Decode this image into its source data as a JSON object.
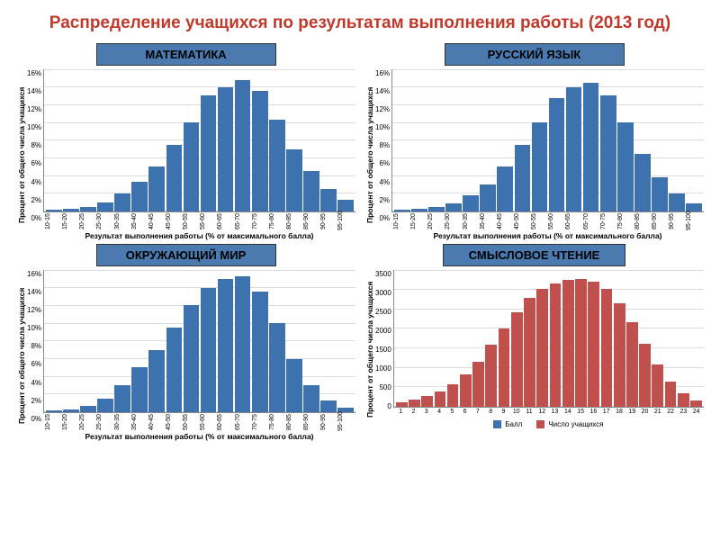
{
  "title": "Распределение учащихся по результатам выполнения работы (2013 год)",
  "title_color": "#c0392b",
  "panel_title_bg": "#4a7ab0",
  "bar_color_blue": "#3e72ae",
  "bar_color_red": "#c0504d",
  "grid_color": "#dcdcdc",
  "axis_color": "#888888",
  "ylabel_pct": "Процент от общего числа учащихся",
  "xlabel_pct": "Результат выполнения работы (% от максимального балла)",
  "categories_pct": [
    "10-15",
    "15-20",
    "20-25",
    "25-30",
    "30-35",
    "35-40",
    "40-45",
    "45-50",
    "50-55",
    "55-60",
    "60-65",
    "65-70",
    "70-75",
    "75-80",
    "80-85",
    "85-90",
    "90-95",
    "95-100"
  ],
  "yticks_pct": [
    "16%",
    "14%",
    "12%",
    "10%",
    "8%",
    "6%",
    "4%",
    "2%",
    "0%"
  ],
  "ymax_pct": 16,
  "panels": [
    {
      "key": "math",
      "title": "МАТЕМАТИКА",
      "type": "bar",
      "color_key": "bar_color_blue",
      "values": [
        0.2,
        0.3,
        0.5,
        1,
        2,
        3.3,
        5,
        7.5,
        10,
        13,
        14,
        14.8,
        13.5,
        10.3,
        7,
        4.5,
        2.5,
        1.3
      ]
    },
    {
      "key": "russian",
      "title": "РУССКИЙ ЯЗЫК",
      "type": "bar",
      "color_key": "bar_color_blue",
      "values": [
        0.2,
        0.3,
        0.5,
        0.9,
        1.8,
        3,
        5,
        7.5,
        10,
        12.7,
        14,
        14.5,
        13,
        10,
        6.5,
        3.8,
        2,
        0.9
      ]
    },
    {
      "key": "world",
      "title": "ОКРУЖАЮЩИЙ МИР",
      "type": "bar",
      "color_key": "bar_color_blue",
      "values": [
        0.2,
        0.3,
        0.7,
        1.5,
        3,
        5,
        7,
        9.5,
        12,
        14,
        15,
        15.3,
        13.5,
        10,
        6,
        3,
        1.3,
        0.5
      ]
    }
  ],
  "reading": {
    "title": "СМЫСЛОВОЕ ЧТЕНИЕ",
    "type": "bar",
    "color_key": "bar_color_red",
    "ylabel": "Процент от общего числа учащихся",
    "categories": [
      "1",
      "2",
      "3",
      "4",
      "5",
      "6",
      "7",
      "8",
      "9",
      "10",
      "11",
      "12",
      "13",
      "14",
      "15",
      "16",
      "17",
      "18",
      "19",
      "20",
      "21",
      "22",
      "23",
      "24"
    ],
    "yticks": [
      "3500",
      "3000",
      "2500",
      "2000",
      "1500",
      "1000",
      "500",
      "0"
    ],
    "ymax": 3500,
    "values": [
      120,
      180,
      260,
      380,
      560,
      820,
      1150,
      1580,
      2000,
      2420,
      2780,
      3020,
      3150,
      3230,
      3270,
      3200,
      3000,
      2650,
      2150,
      1600,
      1080,
      640,
      340,
      160
    ],
    "legend": [
      {
        "label": "Балл",
        "color": "#3e72ae"
      },
      {
        "label": "Число учащихся",
        "color": "#c0504d"
      }
    ]
  }
}
